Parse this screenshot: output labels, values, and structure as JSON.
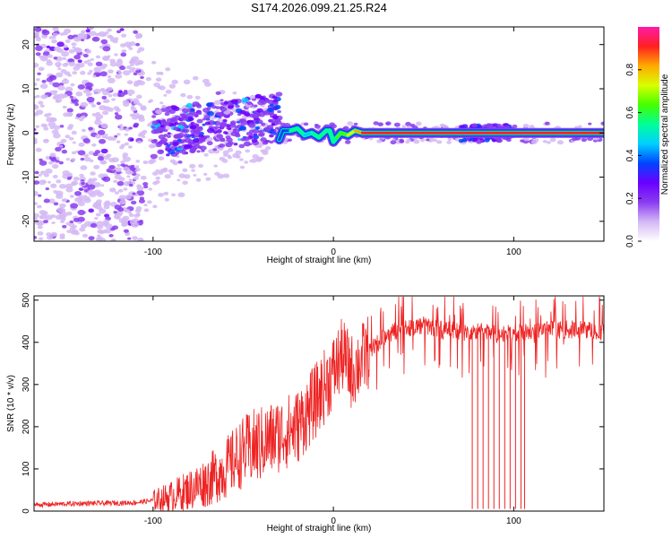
{
  "title": "S174.2026.099.21.25.R24",
  "colors": {
    "snr_line": "#ee2222",
    "colormap": [
      "#ffffff",
      "#d4b8f5",
      "#8a3cf0",
      "#6a00ff",
      "#0044ff",
      "#00d0ff",
      "#00ff99",
      "#44ff00",
      "#d8ff00",
      "#ffaa00",
      "#ff2020",
      "#ff1aa8"
    ]
  },
  "chart_data": [
    {
      "name": "spectrogram",
      "type": "heatmap",
      "xlabel": "Height of straight line (km)",
      "ylabel": "Frequency (Hz)",
      "xlim": [
        -166,
        150
      ],
      "ylim": [
        -24.5,
        24
      ],
      "xticks": [
        -100,
        0,
        100
      ],
      "yticks": [
        -20,
        -10,
        0,
        10,
        20
      ],
      "colorbar": {
        "label": "Normalized spectral amplitude",
        "range": [
          0,
          1
        ],
        "ticks": [
          0.0,
          0.2,
          0.4,
          0.6,
          0.8
        ]
      },
      "ridge": {
        "x": [
          -30,
          -28,
          -24,
          -20,
          -16,
          -12,
          -8,
          -4,
          -2,
          0,
          2,
          4,
          8,
          12,
          16,
          20,
          30,
          60,
          70,
          100,
          150
        ],
        "freq": [
          -1.5,
          0.5,
          0.5,
          1.0,
          -0.5,
          0.0,
          -1.0,
          0.5,
          0.5,
          -2.0,
          -1.0,
          0.0,
          -0.5,
          0.5,
          0.0,
          0.0,
          0.0,
          0.0,
          0.0,
          0.0,
          0.0
        ],
        "amplitude": [
          0.3,
          0.35,
          0.45,
          0.6,
          0.4,
          0.55,
          0.45,
          0.6,
          0.5,
          0.55,
          0.6,
          0.65,
          0.7,
          0.8,
          0.85,
          0.9,
          0.95,
          0.95,
          0.85,
          0.9,
          0.95
        ]
      }
    },
    {
      "name": "snr",
      "type": "line",
      "xlabel": "Height of straight line (km)",
      "ylabel": "SNR (10 * v/v)",
      "xlim": [
        -166,
        150
      ],
      "ylim": [
        0,
        510
      ],
      "xticks": [
        -100,
        0,
        100
      ],
      "yticks": [
        0,
        100,
        200,
        300,
        400,
        500
      ],
      "x": [
        -166,
        -140,
        -110,
        -100,
        -90,
        -80,
        -70,
        -60,
        -50,
        -40,
        -30,
        -20,
        -10,
        0,
        5,
        10,
        20,
        30,
        40,
        50,
        60,
        70,
        75,
        80,
        90,
        100,
        110,
        120,
        130,
        140,
        150
      ],
      "y": [
        15,
        18,
        20,
        25,
        35,
        50,
        70,
        100,
        140,
        160,
        180,
        200,
        260,
        330,
        370,
        330,
        380,
        420,
        435,
        440,
        430,
        425,
        420,
        425,
        420,
        420,
        425,
        430,
        430,
        430,
        425
      ],
      "dropouts_x": [
        77,
        80,
        83,
        86,
        89,
        92,
        95,
        98,
        101,
        104,
        106
      ]
    }
  ]
}
